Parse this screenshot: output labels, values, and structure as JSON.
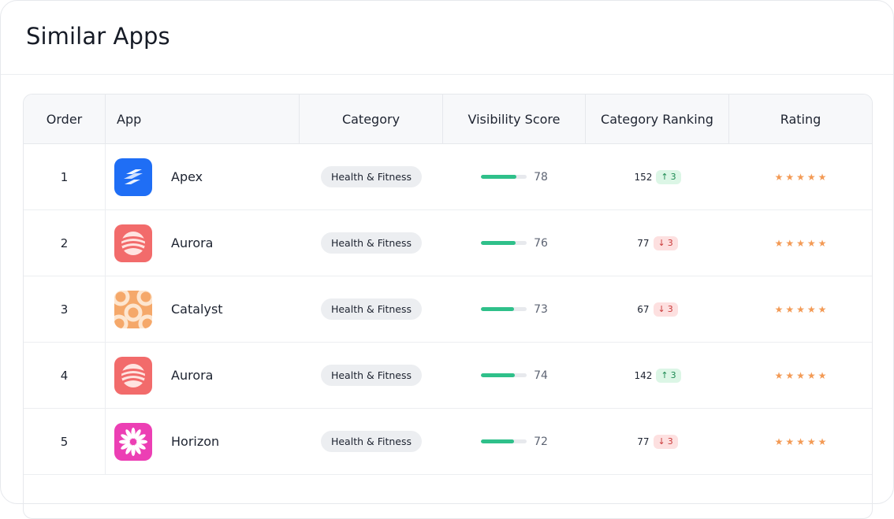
{
  "title": "Similar Apps",
  "columns": {
    "order": "Order",
    "app": "App",
    "category": "Category",
    "visibility": "Visibility Score",
    "ranking": "Category Ranking",
    "rating": "Rating"
  },
  "colors": {
    "bar_fill": "#2fc08a",
    "star": "#f39a55",
    "up_bg": "#dcf6e6",
    "down_bg": "#fde0e0"
  },
  "rows": [
    {
      "order": "1",
      "name": "Apex",
      "icon": "apex-logo-icon",
      "category": "Health & Fitness",
      "visibility": "78",
      "visibility_pct": 78,
      "rank": "152",
      "delta": "3",
      "direction": "up",
      "direction_glyph": "↑",
      "stars": 5
    },
    {
      "order": "2",
      "name": "Aurora",
      "icon": "aurora-logo-icon",
      "category": "Health & Fitness",
      "visibility": "76",
      "visibility_pct": 76,
      "rank": "77",
      "delta": "3",
      "direction": "down",
      "direction_glyph": "↓",
      "stars": 5
    },
    {
      "order": "3",
      "name": "Catalyst",
      "icon": "catalyst-logo-icon",
      "category": "Health & Fitness",
      "visibility": "73",
      "visibility_pct": 73,
      "rank": "67",
      "delta": "3",
      "direction": "down",
      "direction_glyph": "↓",
      "stars": 5
    },
    {
      "order": "4",
      "name": "Aurora",
      "icon": "aurora-logo-icon",
      "category": "Health & Fitness",
      "visibility": "74",
      "visibility_pct": 74,
      "rank": "142",
      "delta": "3",
      "direction": "up",
      "direction_glyph": "↑",
      "stars": 5
    },
    {
      "order": "5",
      "name": "Horizon",
      "icon": "horizon-logo-icon",
      "category": "Health & Fitness",
      "visibility": "72",
      "visibility_pct": 72,
      "rank": "77",
      "delta": "3",
      "direction": "down",
      "direction_glyph": "↓",
      "stars": 5
    }
  ]
}
